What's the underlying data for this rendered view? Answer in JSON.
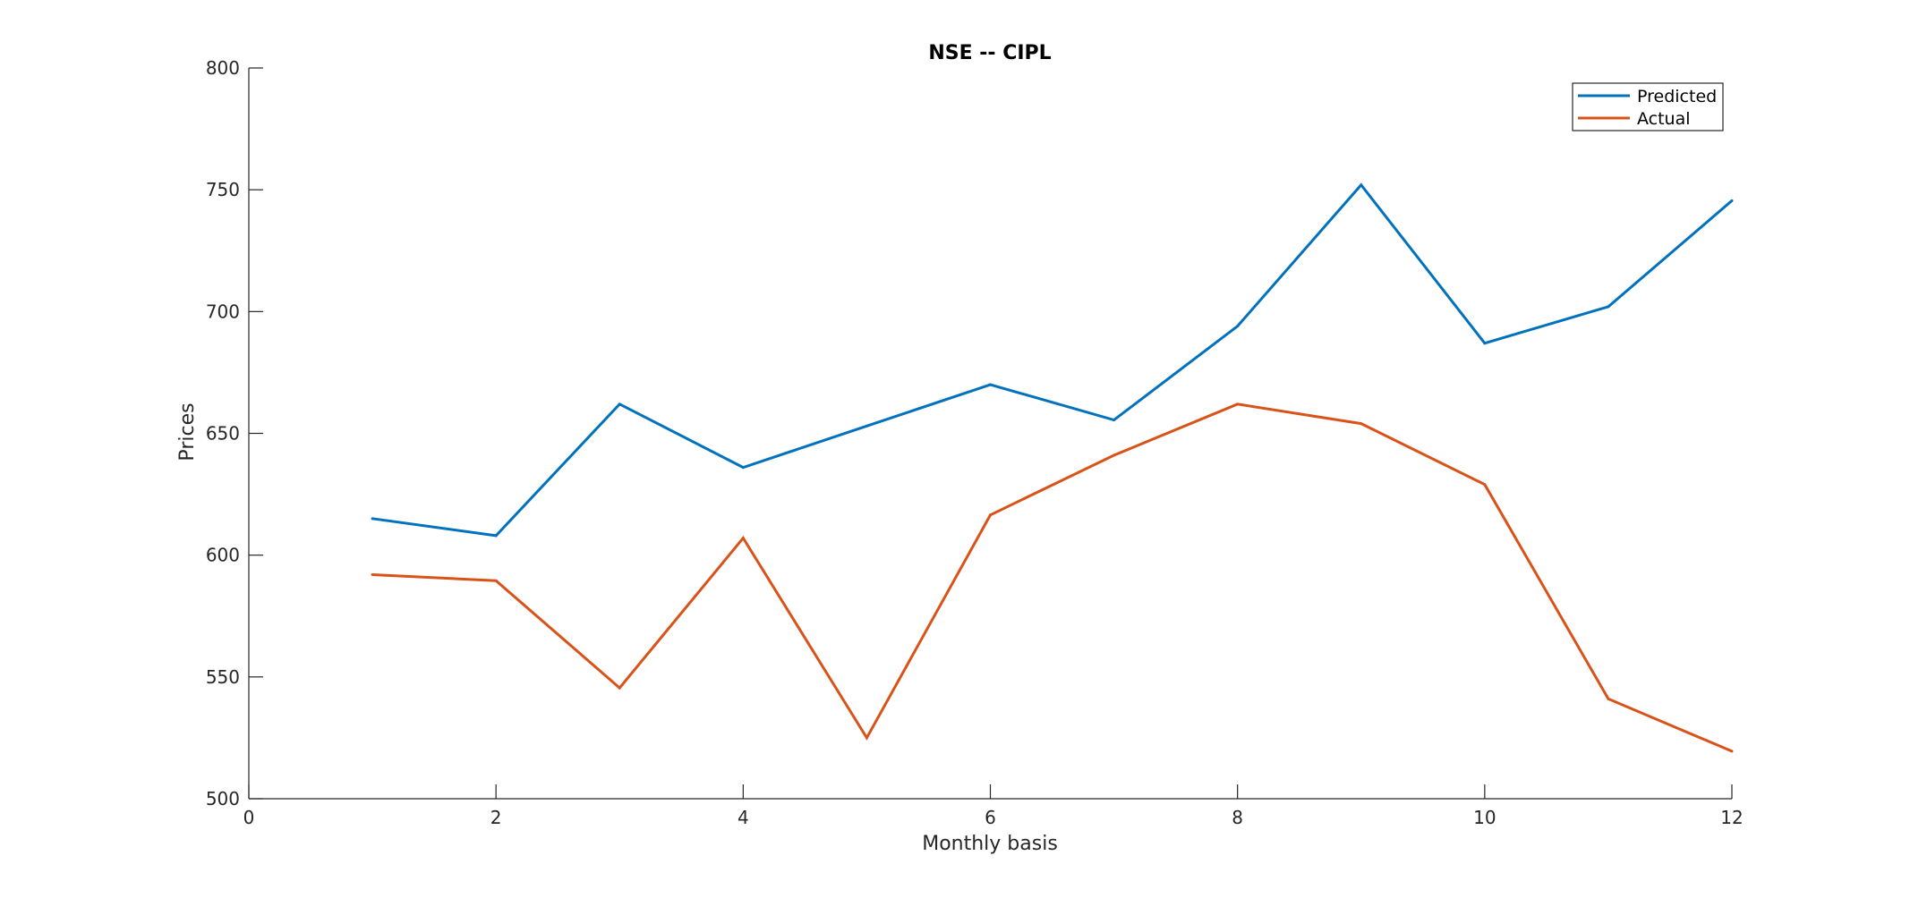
{
  "chart_data": {
    "type": "line",
    "title": "NSE -- CIPL",
    "xlabel": "Monthly basis",
    "ylabel": "Prices",
    "xlim": [
      0,
      12
    ],
    "ylim": [
      500,
      800
    ],
    "xticks": [
      0,
      2,
      4,
      6,
      8,
      10,
      12
    ],
    "yticks": [
      500,
      550,
      600,
      650,
      700,
      750,
      800
    ],
    "grid": false,
    "legend_position": "top-right",
    "x": [
      1,
      2,
      3,
      4,
      5,
      6,
      7,
      8,
      9,
      10,
      11,
      12
    ],
    "series": [
      {
        "name": "Predicted",
        "color": "#0072BD",
        "values": [
          615,
          608,
          662,
          636,
          653,
          670,
          655.5,
          694,
          752,
          687,
          702,
          745.5
        ]
      },
      {
        "name": "Actual",
        "color": "#D95319",
        "values": [
          592,
          589.5,
          545.5,
          607,
          525,
          616.5,
          641,
          662,
          654,
          629,
          541,
          519.5
        ]
      }
    ]
  }
}
